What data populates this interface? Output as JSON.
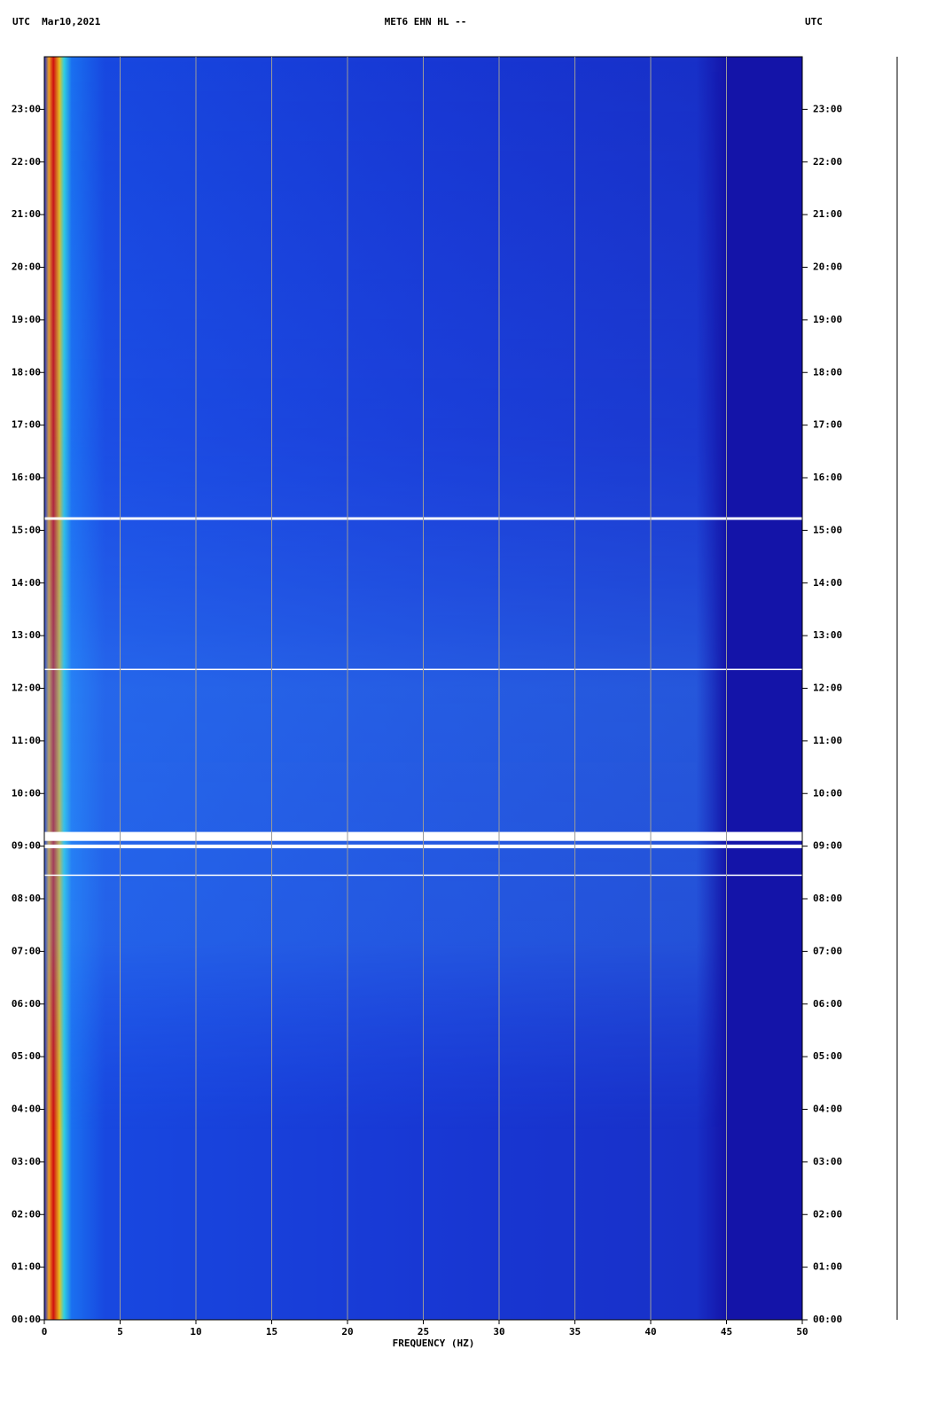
{
  "chart_data": {
    "type": "spectrogram",
    "title_left": "UTC  Mar10,2021",
    "title": "MET6 EHN HL --",
    "title_right": "UTC",
    "xlabel": "FREQUENCY (HZ)",
    "xlim": [
      0,
      50
    ],
    "xticks": [
      0,
      5,
      10,
      15,
      20,
      25,
      30,
      35,
      40,
      45,
      50
    ],
    "ylim": [
      0,
      24
    ],
    "yticks": [
      {
        "value": 0,
        "label": "00:00"
      },
      {
        "value": 1,
        "label": "01:00"
      },
      {
        "value": 2,
        "label": "02:00"
      },
      {
        "value": 3,
        "label": "03:00"
      },
      {
        "value": 4,
        "label": "04:00"
      },
      {
        "value": 5,
        "label": "05:00"
      },
      {
        "value": 6,
        "label": "06:00"
      },
      {
        "value": 7,
        "label": "07:00"
      },
      {
        "value": 8,
        "label": "08:00"
      },
      {
        "value": 9,
        "label": "09:00"
      },
      {
        "value": 10,
        "label": "10:00"
      },
      {
        "value": 11,
        "label": "11:00"
      },
      {
        "value": 12,
        "label": "12:00"
      },
      {
        "value": 13,
        "label": "13:00"
      },
      {
        "value": 14,
        "label": "14:00"
      },
      {
        "value": 15,
        "label": "15:00"
      },
      {
        "value": 16,
        "label": "16:00"
      },
      {
        "value": 17,
        "label": "17:00"
      },
      {
        "value": 18,
        "label": "18:00"
      },
      {
        "value": 19,
        "label": "19:00"
      },
      {
        "value": 20,
        "label": "20:00"
      },
      {
        "value": 21,
        "label": "21:00"
      },
      {
        "value": 22,
        "label": "22:00"
      },
      {
        "value": 23,
        "label": "23:00"
      }
    ],
    "gaps": [
      [
        15.2,
        15.25
      ],
      [
        12.35,
        12.37
      ],
      [
        9.1,
        9.27
      ],
      [
        8.96,
        9.03
      ],
      [
        8.44,
        8.46
      ]
    ],
    "grid": true
  }
}
